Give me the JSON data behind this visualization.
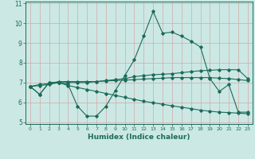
{
  "xlabel": "Humidex (Indice chaleur)",
  "x": [
    0,
    1,
    2,
    3,
    4,
    5,
    6,
    7,
    8,
    9,
    10,
    11,
    12,
    13,
    14,
    15,
    16,
    17,
    18,
    19,
    20,
    21,
    22,
    23
  ],
  "line1": [
    6.8,
    6.4,
    7.0,
    7.0,
    6.9,
    5.8,
    5.3,
    5.3,
    5.8,
    6.6,
    7.35,
    8.15,
    9.35,
    10.6,
    9.5,
    9.55,
    9.35,
    9.1,
    8.8,
    7.2,
    6.55,
    6.9,
    5.5,
    5.5
  ],
  "line2": [
    6.8,
    6.85,
    6.9,
    7.0,
    7.0,
    7.0,
    7.0,
    7.05,
    7.1,
    7.15,
    7.2,
    7.3,
    7.35,
    7.4,
    7.42,
    7.45,
    7.5,
    7.55,
    7.6,
    7.62,
    7.65,
    7.65,
    7.65,
    7.2
  ],
  "line3": [
    6.8,
    6.9,
    6.95,
    7.05,
    7.05,
    7.05,
    7.05,
    7.05,
    7.08,
    7.1,
    7.12,
    7.15,
    7.18,
    7.2,
    7.22,
    7.25,
    7.25,
    7.25,
    7.25,
    7.25,
    7.22,
    7.2,
    7.15,
    7.1
  ],
  "line4": [
    6.8,
    6.4,
    7.0,
    7.0,
    6.85,
    6.75,
    6.65,
    6.55,
    6.45,
    6.35,
    6.25,
    6.15,
    6.05,
    5.98,
    5.9,
    5.82,
    5.75,
    5.68,
    5.6,
    5.55,
    5.5,
    5.48,
    5.45,
    5.42
  ],
  "color": "#1a6b5a",
  "bg_color": "#cce8e4",
  "grid_color_h": "#d4a8a8",
  "grid_color_v": "#d4a8a8",
  "ylim": [
    4.9,
    11.1
  ],
  "yticks": [
    5,
    6,
    7,
    8,
    9,
    10,
    11
  ],
  "xlim": [
    -0.5,
    23.5
  ]
}
